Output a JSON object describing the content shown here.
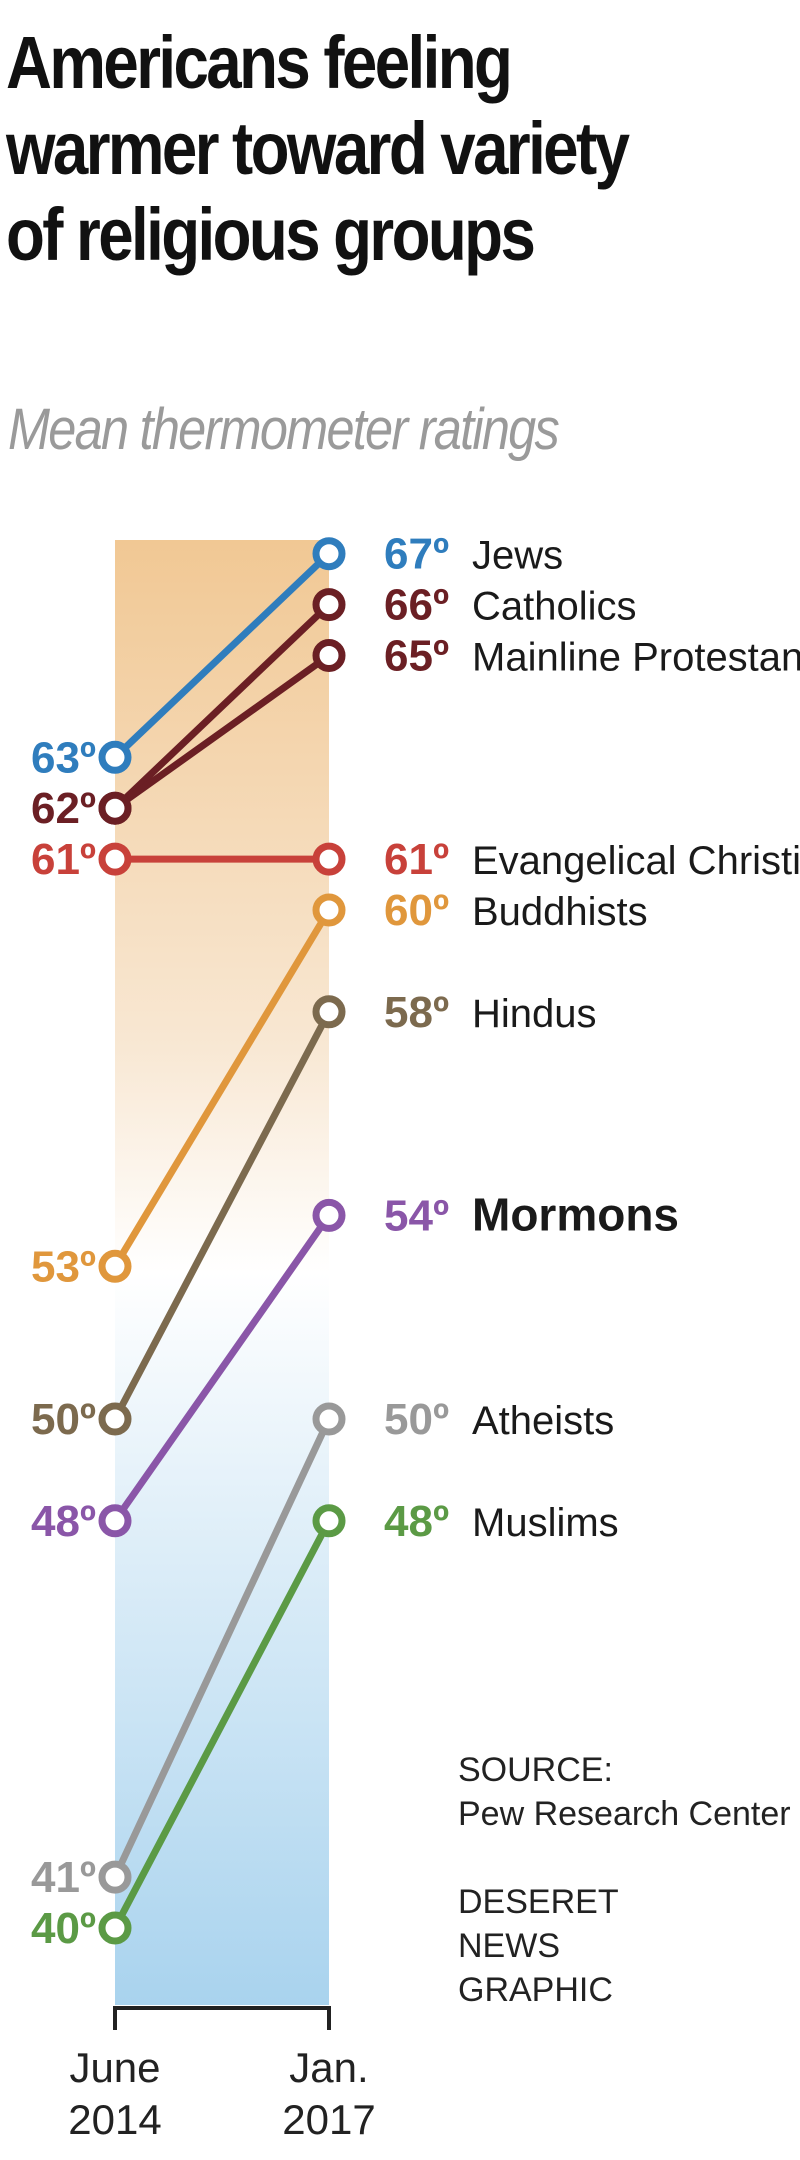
{
  "title": "Americans feeling warmer toward variety of religious groups",
  "subtitle": "Mean thermometer ratings",
  "chart_data": {
    "type": "line",
    "title": "Americans feeling warmer toward variety of religious groups",
    "subtitle": "Mean thermometer ratings",
    "x_labels": [
      [
        "June",
        "2014"
      ],
      [
        "Jan.",
        "2017"
      ]
    ],
    "unit": "º",
    "grid": false,
    "series": [
      {
        "name": "Jews",
        "values": [
          63,
          67
        ],
        "color": "#2f7dbd",
        "bold": false
      },
      {
        "name": "Catholics",
        "values": [
          62,
          66
        ],
        "color": "#6b1f24",
        "bold": false
      },
      {
        "name": "Mainline Protestants",
        "values": [
          62,
          65
        ],
        "color": "#6b1f24",
        "bold": false
      },
      {
        "name": "Evangelical Christians",
        "values": [
          61,
          61
        ],
        "color": "#c8413a",
        "bold": false
      },
      {
        "name": "Buddhists",
        "values": [
          53,
          60
        ],
        "color": "#e0973c",
        "bold": false
      },
      {
        "name": "Hindus",
        "values": [
          50,
          58
        ],
        "color": "#7c6a4e",
        "bold": false
      },
      {
        "name": "Mormons",
        "values": [
          48,
          54
        ],
        "color": "#8a56a8",
        "bold": true
      },
      {
        "name": "Atheists",
        "values": [
          41,
          50
        ],
        "color": "#999999",
        "bold": false
      },
      {
        "name": "Muslims",
        "values": [
          40,
          48
        ],
        "color": "#5b9a45",
        "bold": false
      }
    ],
    "left_value_labels": [
      {
        "value": 63,
        "color": "#2f7dbd"
      },
      {
        "value": 62,
        "color": "#6b1f24"
      },
      {
        "value": 61,
        "color": "#c8413a"
      },
      {
        "value": 53,
        "color": "#e0973c"
      },
      {
        "value": 50,
        "color": "#7c6a4e"
      },
      {
        "value": 48,
        "color": "#8a56a8"
      },
      {
        "value": 41,
        "color": "#999999"
      },
      {
        "value": 40,
        "color": "#5b9a45"
      }
    ]
  },
  "source_label": "SOURCE:",
  "source_name": "Pew Research Center",
  "credit_lines": [
    "DESERET",
    "NEWS",
    "GRAPHIC"
  ]
}
